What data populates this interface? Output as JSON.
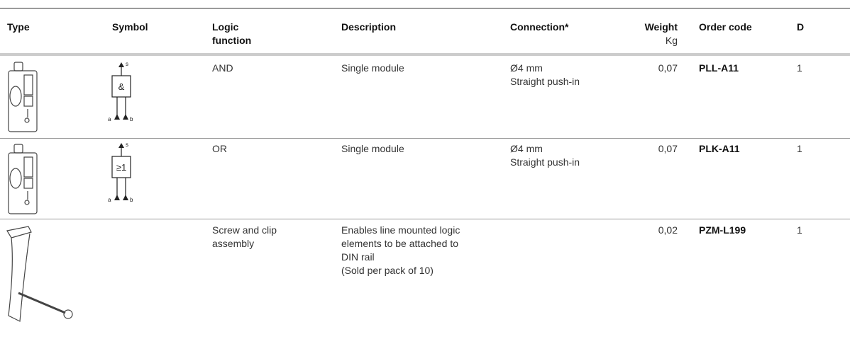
{
  "header": {
    "type": "Type",
    "symbol": "Symbol",
    "logic_function": [
      "Logic",
      "function"
    ],
    "description": "Description",
    "connection": "Connection*",
    "weight": [
      "Weight",
      "Kg"
    ],
    "order_code": "Order code",
    "d": "D"
  },
  "rows": [
    {
      "symbol": {
        "label": "&",
        "output": "s",
        "input_a": "a",
        "input_b": "b"
      },
      "logic_function": [
        "AND"
      ],
      "description": [
        "Single module"
      ],
      "connection": [
        "Ø4 mm",
        "Straight push-in"
      ],
      "weight": "0,07",
      "order_code": "PLL-A11",
      "d": "1"
    },
    {
      "symbol": {
        "label": "≥1",
        "output": "s",
        "input_a": "a",
        "input_b": "b"
      },
      "logic_function": [
        "OR"
      ],
      "description": [
        "Single module"
      ],
      "connection": [
        "Ø4 mm",
        "Straight push-in"
      ],
      "weight": "0,07",
      "order_code": "PLK-A11",
      "d": "1"
    },
    {
      "logic_function": [
        "Screw and clip",
        "assembly"
      ],
      "description": [
        "Enables line mounted logic",
        "elements to be attached to",
        "DIN rail",
        "(Sold per pack of 10)"
      ],
      "weight": "0,02",
      "order_code": "PZM-L199",
      "d": "1"
    }
  ]
}
